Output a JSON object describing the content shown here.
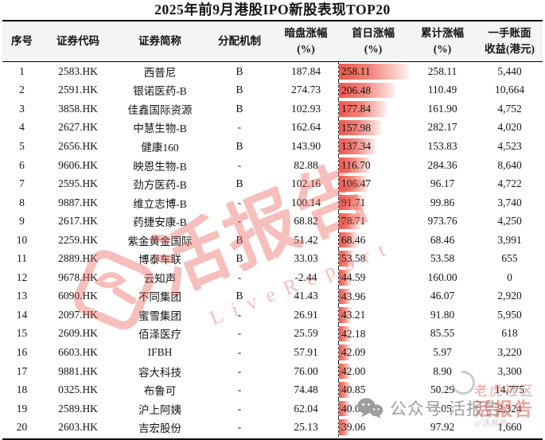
{
  "title": "2025年前9月港股IPO新股表现TOP20",
  "table": {
    "bar_max": 258.11,
    "bar_color_start": "#ee564e",
    "bar_color_end": "#fdf0ee",
    "columns": [
      {
        "key": "rank",
        "label": "序号"
      },
      {
        "key": "code",
        "label": "证券代码"
      },
      {
        "key": "name",
        "label": "证券简称"
      },
      {
        "key": "mech",
        "label": "分配机制"
      },
      {
        "key": "dark",
        "label": "暗盘涨幅",
        "label2": "(%)"
      },
      {
        "key": "first",
        "label": "首日涨幅",
        "label2": "(%)"
      },
      {
        "key": "cum",
        "label": "累计涨幅",
        "label2": "(%)"
      },
      {
        "key": "profit",
        "label": "一手账面",
        "label2": "收益(港元)"
      }
    ],
    "rows": [
      [
        "1",
        "2583.HK",
        "西普尼",
        "B",
        "187.84",
        "258.11",
        "258.11",
        "5,440"
      ],
      [
        "2",
        "2591.HK",
        "银诺医药-B",
        "B",
        "274.73",
        "206.48",
        "110.49",
        "10,664"
      ],
      [
        "3",
        "3858.HK",
        "佳鑫国际资源",
        "B",
        "102.93",
        "177.84",
        "161.90",
        "4,752"
      ],
      [
        "4",
        "2627.HK",
        "中慧生物-B",
        "-",
        "162.64",
        "157.98",
        "282.17",
        "4,020"
      ],
      [
        "5",
        "2656.HK",
        "健康160",
        "B",
        "143.90",
        "137.34",
        "153.83",
        "4,523"
      ],
      [
        "6",
        "9606.HK",
        "映恩生物-B",
        "-",
        "82.88",
        "116.70",
        "284.36",
        "8,640"
      ],
      [
        "7",
        "2595.HK",
        "劲方医药-B",
        "B",
        "102.16",
        "106.47",
        "96.17",
        "4,722"
      ],
      [
        "8",
        "9887.HK",
        "维立志博-B",
        "-",
        "100.14",
        "91.71",
        "99.86",
        "3,740"
      ],
      [
        "9",
        "2617.HK",
        "药捷安康-B",
        "-",
        "68.82",
        "78.71",
        "973.76",
        "4,250"
      ],
      [
        "10",
        "2259.HK",
        "紫金黄金国际",
        "B",
        "51.42",
        "68.46",
        "68.46",
        "3,991"
      ],
      [
        "11",
        "2889.HK",
        "博泰车联",
        "B",
        "33.03",
        "53.58",
        "53.58",
        "655"
      ],
      [
        "12",
        "9678.HK",
        "云知声",
        "-",
        "-2.44",
        "44.59",
        "160.00",
        "0"
      ],
      [
        "13",
        "6090.HK",
        "不同集团",
        "B",
        "41.43",
        "43.96",
        "46.07",
        "2,920"
      ],
      [
        "14",
        "2097.HK",
        "蜜雪集团",
        "-",
        "26.91",
        "43.21",
        "91.80",
        "5,950"
      ],
      [
        "15",
        "2609.HK",
        "佰泽医疗",
        "-",
        "25.59",
        "42.18",
        "85.55",
        "618"
      ],
      [
        "16",
        "6603.HK",
        "IFBH",
        "-",
        "57.91",
        "42.09",
        "5.97",
        "3,220"
      ],
      [
        "17",
        "9881.HK",
        "容大科技",
        "-",
        "76.00",
        "42.00",
        "8.90",
        "3,300"
      ],
      [
        "18",
        "0325.HK",
        "布鲁可",
        "-",
        "74.48",
        "40.85",
        "50.29",
        "14,775"
      ],
      [
        "19",
        "2589.HK",
        "沪上阿姨",
        "-",
        "62.04",
        "40.03",
        "7.05",
        "2,324"
      ],
      [
        "20",
        "2603.HK",
        "吉宏股份",
        "-",
        "25.13",
        "39.06",
        "97.92",
        "1,660"
      ]
    ]
  },
  "watermark_center": {
    "text": "活报告",
    "subtext": "LiveReport",
    "color": "#e9594e"
  },
  "watermark_corner": {
    "icon": "wechat-icon",
    "text": "公众号·活报告",
    "color": "#9d9d9d"
  },
  "watermark_corner_red": {
    "line1": "老虎社区",
    "line2": "活报告",
    "line3": "@活报告",
    "color": "#dd5b50"
  }
}
